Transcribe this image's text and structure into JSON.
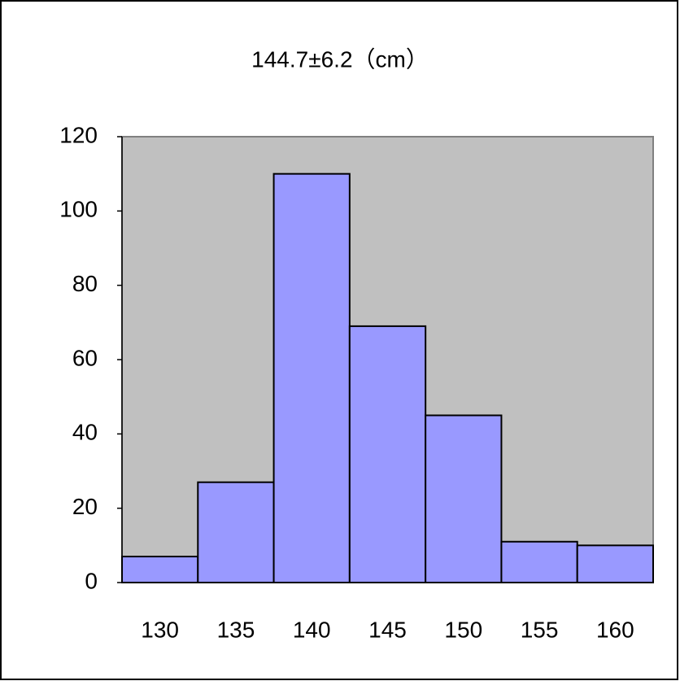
{
  "chart_data": {
    "type": "bar",
    "title": "144.7±6.2（cm）",
    "categories": [
      "130",
      "135",
      "140",
      "145",
      "150",
      "155",
      "160"
    ],
    "values": [
      7,
      27,
      110,
      69,
      45,
      11,
      10
    ],
    "color": "#9999ff",
    "plot_background": "#c0c0c0",
    "ylim": [
      0,
      120
    ],
    "yticks": [
      0,
      20,
      40,
      60,
      80,
      100,
      120
    ],
    "grid": false
  }
}
